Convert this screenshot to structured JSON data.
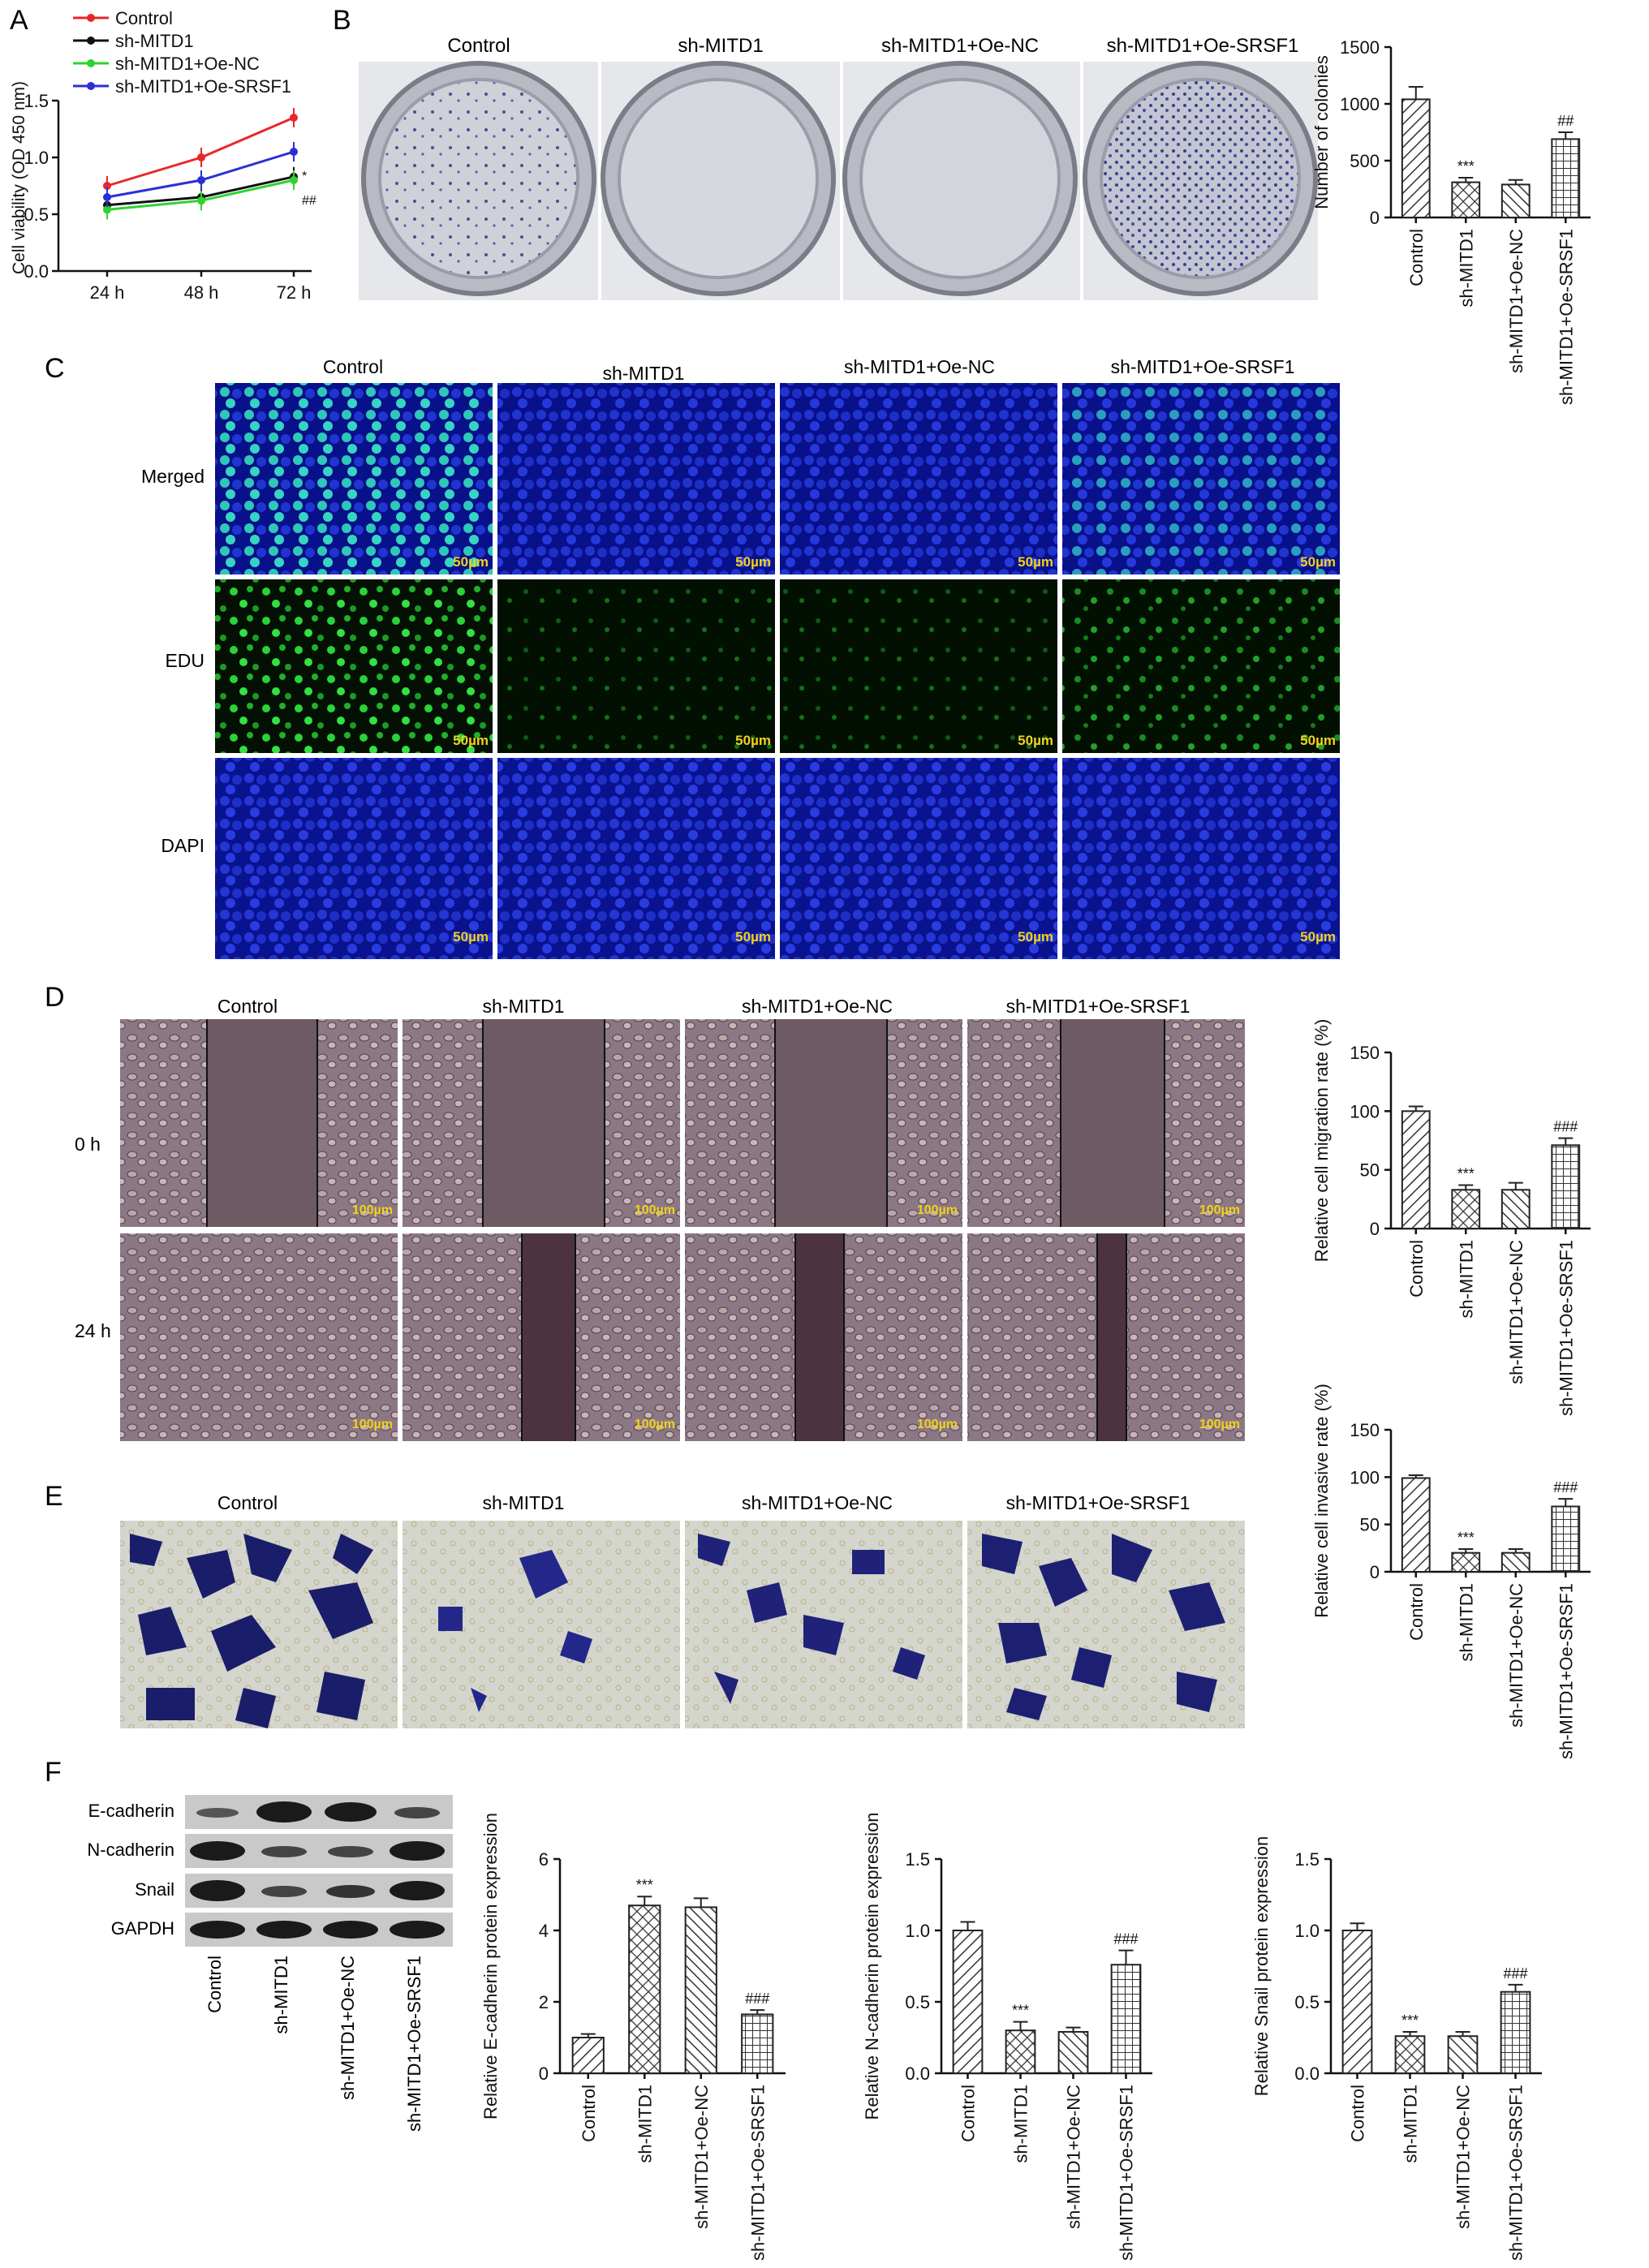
{
  "panels": {
    "A": "A",
    "B": "B",
    "C": "C",
    "D": "D",
    "E": "E",
    "F": "F"
  },
  "groups": [
    "Control",
    "sh-MITD1",
    "sh-MITD1+Oe-NC",
    "sh-MITD1+Oe-SRSF1"
  ],
  "panel_C": {
    "rows": [
      "Merged",
      "EDU",
      "DAPI"
    ],
    "scale_bar": "50µm"
  },
  "panel_D": {
    "rows": [
      "0 h",
      "24 h"
    ],
    "scale_bar": "100µm"
  },
  "panel_F": {
    "blot_rows": [
      "E-cadherin",
      "N-cadherin",
      "Snail",
      "GAPDH"
    ]
  },
  "colors": {
    "control": "#e8262b",
    "sh_mitd1": "#111111",
    "oe_nc": "#2fd22f",
    "oe_srsf1": "#2b2fd6",
    "merged_bg": "#0a12a0",
    "edu_bg": "#020a02",
    "dapi_bg": "#1522b8",
    "wound_bg": "#6e5a63",
    "transwell_bg": "#d6d6cf"
  },
  "chart_data": [
    {
      "id": "A",
      "type": "line",
      "x": [
        "24 h",
        "48 h",
        "72 h"
      ],
      "ylabel": "Cell viability (OD 450 nm)",
      "ylim": [
        0,
        1.5
      ],
      "yticks": [
        "0.0",
        "0.5",
        "1.0",
        "1.5"
      ],
      "legend_placement": "top-left",
      "series": [
        {
          "name": "Control",
          "values": [
            0.75,
            1.0,
            1.35
          ],
          "color": "#e8262b"
        },
        {
          "name": "sh-MITD1",
          "values": [
            0.58,
            0.65,
            0.83
          ],
          "color": "#111111"
        },
        {
          "name": "sh-MITD1+Oe-NC",
          "values": [
            0.54,
            0.62,
            0.8
          ],
          "color": "#2fd22f"
        },
        {
          "name": "sh-MITD1+Oe-SRSF1",
          "values": [
            0.65,
            0.8,
            1.05
          ],
          "color": "#2b2fd6"
        }
      ],
      "annotations": [
        "*",
        "##"
      ]
    },
    {
      "id": "B",
      "type": "bar",
      "categories": [
        "Control",
        "sh-MITD1",
        "sh-MITD1+Oe-NC",
        "sh-MITD1+Oe-SRSF1"
      ],
      "values": [
        1040,
        310,
        290,
        690
      ],
      "errors": [
        110,
        40,
        40,
        60
      ],
      "ylabel": "Number of colonies",
      "ylim": [
        0,
        1500
      ],
      "yticks": [
        "0",
        "500",
        "1000",
        "1500"
      ],
      "annotations": [
        "",
        "***",
        "",
        "##"
      ]
    },
    {
      "id": "D",
      "type": "bar",
      "categories": [
        "Control",
        "sh-MITD1",
        "sh-MITD1+Oe-NC",
        "sh-MITD1+Oe-SRSF1"
      ],
      "values": [
        100,
        33,
        33,
        71
      ],
      "errors": [
        4,
        4,
        6,
        6
      ],
      "ylabel": "Relative cell migration rate (%)",
      "ylim": [
        0,
        150
      ],
      "yticks": [
        "0",
        "50",
        "100",
        "150"
      ],
      "annotations": [
        "",
        "***",
        "",
        "###"
      ]
    },
    {
      "id": "E",
      "type": "bar",
      "categories": [
        "Control",
        "sh-MITD1",
        "sh-MITD1+Oe-NC",
        "sh-MITD1+Oe-SRSF1"
      ],
      "values": [
        99,
        20,
        20,
        69
      ],
      "errors": [
        3,
        4,
        4,
        8
      ],
      "ylabel": "Relative cell invasive rate (%)",
      "ylim": [
        0,
        150
      ],
      "yticks": [
        "0",
        "50",
        "100",
        "150"
      ],
      "annotations": [
        "",
        "***",
        "",
        "###"
      ]
    },
    {
      "id": "F1",
      "type": "bar",
      "categories": [
        "Control",
        "sh-MITD1",
        "sh-MITD1+Oe-NC",
        "sh-MITD1+Oe-SRSF1"
      ],
      "values": [
        1.0,
        4.7,
        4.65,
        1.65
      ],
      "errors": [
        0.1,
        0.25,
        0.25,
        0.12
      ],
      "ylabel": "Relative E-cadherin protein expression",
      "ylim": [
        0,
        6
      ],
      "yticks": [
        "0",
        "2",
        "4",
        "6"
      ],
      "annotations": [
        "",
        "***",
        "",
        "###"
      ]
    },
    {
      "id": "F2",
      "type": "bar",
      "categories": [
        "Control",
        "sh-MITD1",
        "sh-MITD1+Oe-NC",
        "sh-MITD1+Oe-SRSF1"
      ],
      "values": [
        1.0,
        0.3,
        0.29,
        0.76
      ],
      "errors": [
        0.06,
        0.06,
        0.03,
        0.1
      ],
      "ylabel": "Relative N-cadherin protein expression",
      "ylim": [
        0,
        1.5
      ],
      "yticks": [
        "0.0",
        "0.5",
        "1.0",
        "1.5"
      ],
      "annotations": [
        "",
        "***",
        "",
        "###"
      ]
    },
    {
      "id": "F3",
      "type": "bar",
      "categories": [
        "Control",
        "sh-MITD1",
        "sh-MITD1+Oe-NC",
        "sh-MITD1+Oe-SRSF1"
      ],
      "values": [
        1.0,
        0.26,
        0.26,
        0.57
      ],
      "errors": [
        0.05,
        0.03,
        0.03,
        0.05
      ],
      "ylabel": "Relative Snail protein expression",
      "ylim": [
        0,
        1.5
      ],
      "yticks": [
        "0.0",
        "0.5",
        "1.0",
        "1.5"
      ],
      "annotations": [
        "",
        "***",
        "",
        "###"
      ]
    }
  ]
}
